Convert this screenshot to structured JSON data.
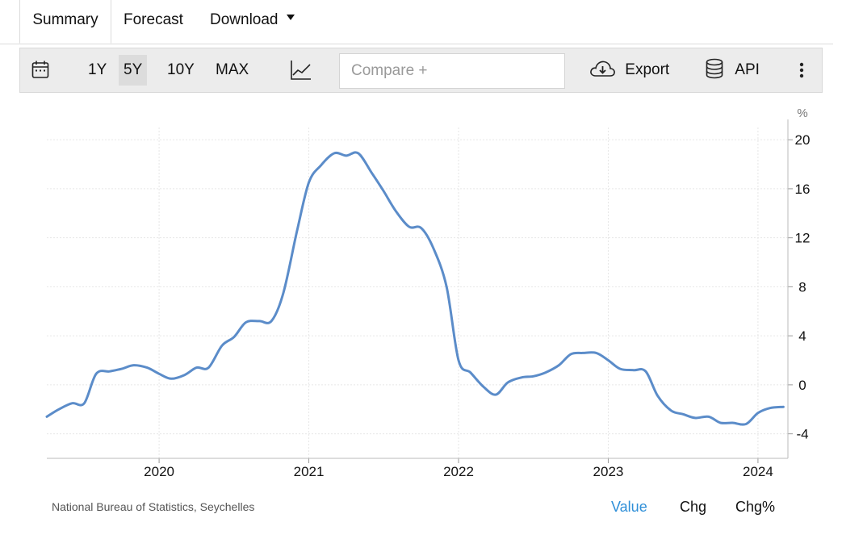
{
  "tabs": {
    "summary": "Summary",
    "forecast": "Forecast",
    "download": "Download"
  },
  "toolbar": {
    "ranges": [
      "1Y",
      "5Y",
      "10Y",
      "MAX"
    ],
    "active_range": "5Y",
    "compare_placeholder": "Compare +",
    "export_label": "Export",
    "api_label": "API"
  },
  "chart_data": {
    "type": "line",
    "unit_label": "%",
    "line_color": "#5b8cc9",
    "xlim": [
      2019.25,
      2024.2
    ],
    "ylim": [
      -6,
      21
    ],
    "x_ticks": [
      {
        "value": 2020,
        "label": "2020"
      },
      {
        "value": 2021,
        "label": "2021"
      },
      {
        "value": 2022,
        "label": "2022"
      },
      {
        "value": 2023,
        "label": "2023"
      },
      {
        "value": 2024,
        "label": "2024"
      }
    ],
    "y_ticks": [
      {
        "value": 20,
        "label": "20"
      },
      {
        "value": 16,
        "label": "16"
      },
      {
        "value": 12,
        "label": "12"
      },
      {
        "value": 8,
        "label": "8"
      },
      {
        "value": 4,
        "label": "4"
      },
      {
        "value": 0,
        "label": "0"
      },
      {
        "value": -4,
        "label": "-4"
      }
    ],
    "series": [
      {
        "x": [
          2019.25,
          2019.33,
          2019.42,
          2019.5,
          2019.58,
          2019.67,
          2019.75,
          2019.83,
          2019.92,
          2020.0,
          2020.08,
          2020.17,
          2020.25,
          2020.33,
          2020.42,
          2020.5,
          2020.58,
          2020.67,
          2020.75,
          2020.83,
          2020.92,
          2021.0,
          2021.08,
          2021.17,
          2021.25,
          2021.33,
          2021.42,
          2021.5,
          2021.58,
          2021.67,
          2021.75,
          2021.83,
          2021.92,
          2022.0,
          2022.08,
          2022.17,
          2022.25,
          2022.33,
          2022.42,
          2022.5,
          2022.58,
          2022.67,
          2022.75,
          2022.83,
          2022.92,
          2023.0,
          2023.08,
          2023.17,
          2023.25,
          2023.33,
          2023.42,
          2023.5,
          2023.58,
          2023.67,
          2023.75,
          2023.83,
          2023.92,
          2024.0,
          2024.08,
          2024.17
        ],
        "y": [
          -2.6,
          -2.0,
          -1.5,
          -1.5,
          0.9,
          1.1,
          1.3,
          1.6,
          1.4,
          0.9,
          0.5,
          0.8,
          1.4,
          1.4,
          3.2,
          3.9,
          5.1,
          5.2,
          5.2,
          7.5,
          12.5,
          16.5,
          17.9,
          18.9,
          18.7,
          18.9,
          17.3,
          15.8,
          14.2,
          12.9,
          12.8,
          11.2,
          8.0,
          2.0,
          1.0,
          -0.2,
          -0.8,
          0.2,
          0.6,
          0.7,
          1.0,
          1.6,
          2.5,
          2.6,
          2.6,
          2.0,
          1.3,
          1.2,
          1.1,
          -0.9,
          -2.1,
          -2.4,
          -2.7,
          -2.6,
          -3.1,
          -3.1,
          -3.2,
          -2.3,
          -1.9,
          -1.8
        ]
      }
    ]
  },
  "footer": {
    "source": "National Bureau of Statistics, Seychelles",
    "views": [
      "Value",
      "Chg",
      "Chg%"
    ]
  }
}
